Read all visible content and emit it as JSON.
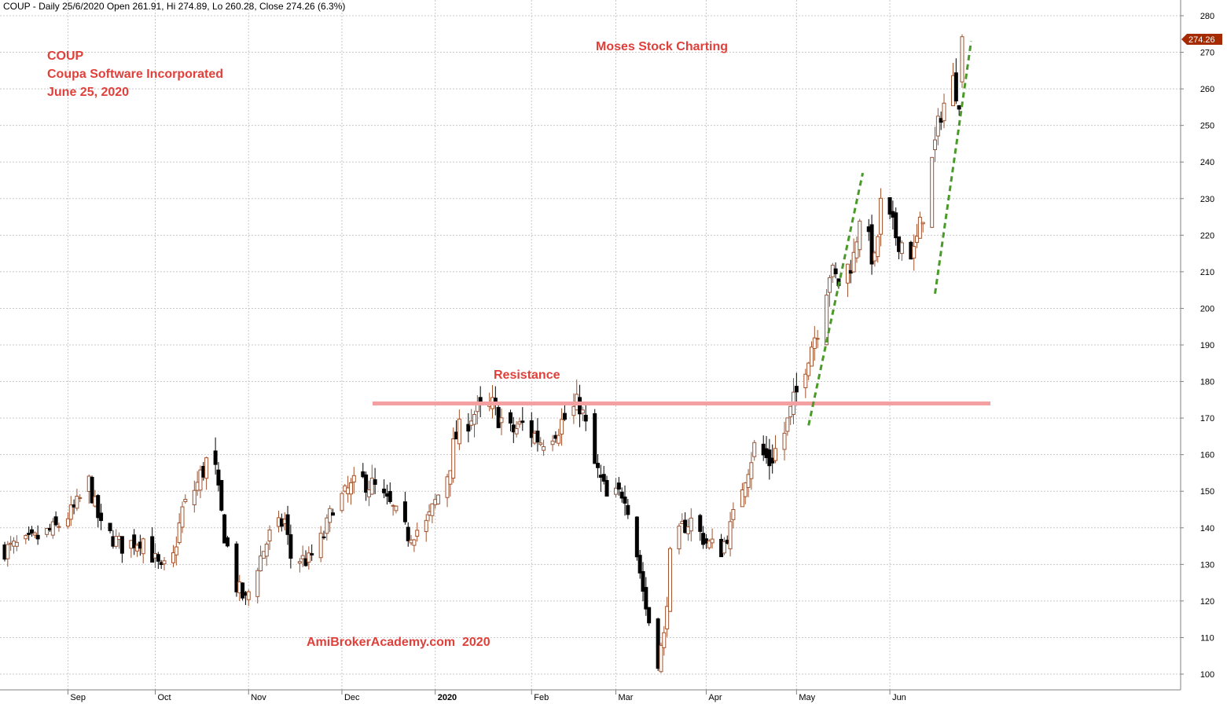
{
  "header": {
    "info_line": "COUP - Daily 25/6/2020 Open 261.91, Hi 274.89, Lo 260.28, Close 274.26 (6.3%)"
  },
  "annotations": {
    "ticker": "COUP",
    "company": "Coupa Software Incorporated",
    "date": "June 25, 2020",
    "brand_top": "Moses Stock Charting",
    "resistance_label": "Resistance",
    "watermark": "AmiBrokerAcademy.com  2020"
  },
  "price_tag": {
    "value": "274.26",
    "color": "#a52a00"
  },
  "colors": {
    "up_candle": "#a0522d",
    "down_candle": "#000000",
    "resistance_line": "#f4a0a0",
    "trend_line": "#4a9a2a",
    "grid": "#c8c8c8",
    "annotation_text": "#e0403a"
  },
  "chart_data": {
    "type": "candlestick",
    "title": "",
    "ylim": [
      97,
      283
    ],
    "y_ticks": [
      100,
      110,
      120,
      130,
      140,
      150,
      160,
      170,
      180,
      190,
      200,
      210,
      220,
      230,
      240,
      250,
      260,
      270,
      280
    ],
    "x_range": [
      "2019-08-12",
      "2020-06-30"
    ],
    "x_ticks": [
      {
        "label": "Sep",
        "date": "2019-09-02",
        "bold": false
      },
      {
        "label": "Oct",
        "date": "2019-10-01",
        "bold": false
      },
      {
        "label": "Nov",
        "date": "2019-11-01",
        "bold": false
      },
      {
        "label": "Dec",
        "date": "2019-12-02",
        "bold": false
      },
      {
        "label": "2020",
        "date": "2020-01-02",
        "bold": true
      },
      {
        "label": "Feb",
        "date": "2020-02-03",
        "bold": false
      },
      {
        "label": "Mar",
        "date": "2020-03-02",
        "bold": false
      },
      {
        "label": "Apr",
        "date": "2020-04-01",
        "bold": false
      },
      {
        "label": "May",
        "date": "2020-05-01",
        "bold": false
      },
      {
        "label": "Jun",
        "date": "2020-06-01",
        "bold": false
      }
    ],
    "grid": true,
    "last": {
      "date": "2020-06-25",
      "open": 261.91,
      "high": 274.89,
      "low": 260.28,
      "close": 274.26
    },
    "closes": [
      {
        "date": "2019-08-12",
        "close": 134
      },
      {
        "date": "2019-08-20",
        "close": 136
      },
      {
        "date": "2019-08-29",
        "close": 140
      },
      {
        "date": "2019-09-04",
        "close": 145
      },
      {
        "date": "2019-09-09",
        "close": 152
      },
      {
        "date": "2019-09-13",
        "close": 140
      },
      {
        "date": "2019-09-20",
        "close": 135
      },
      {
        "date": "2019-09-27",
        "close": 137
      },
      {
        "date": "2019-10-03",
        "close": 128
      },
      {
        "date": "2019-10-07",
        "close": 132
      },
      {
        "date": "2019-10-10",
        "close": 145
      },
      {
        "date": "2019-10-15",
        "close": 152
      },
      {
        "date": "2019-10-18",
        "close": 158
      },
      {
        "date": "2019-10-21",
        "close": 155
      },
      {
        "date": "2019-10-24",
        "close": 138
      },
      {
        "date": "2019-10-28",
        "close": 124
      },
      {
        "date": "2019-10-31",
        "close": 120
      },
      {
        "date": "2019-11-04",
        "close": 130
      },
      {
        "date": "2019-11-08",
        "close": 138
      },
      {
        "date": "2019-11-13",
        "close": 142
      },
      {
        "date": "2019-11-15",
        "close": 132
      },
      {
        "date": "2019-11-21",
        "close": 131
      },
      {
        "date": "2019-11-26",
        "close": 138
      },
      {
        "date": "2019-11-29",
        "close": 146
      },
      {
        "date": "2019-12-04",
        "close": 150
      },
      {
        "date": "2019-12-10",
        "close": 153
      },
      {
        "date": "2019-12-16",
        "close": 148
      },
      {
        "date": "2019-12-19",
        "close": 145
      },
      {
        "date": "2019-12-24",
        "close": 138
      },
      {
        "date": "2019-12-30",
        "close": 141
      },
      {
        "date": "2020-01-02",
        "close": 147
      },
      {
        "date": "2020-01-06",
        "close": 155
      },
      {
        "date": "2020-01-09",
        "close": 165
      },
      {
        "date": "2020-01-14",
        "close": 171
      },
      {
        "date": "2020-01-21",
        "close": 173
      },
      {
        "date": "2020-01-27",
        "close": 166
      },
      {
        "date": "2020-01-31",
        "close": 168
      },
      {
        "date": "2020-02-06",
        "close": 164
      },
      {
        "date": "2020-02-12",
        "close": 168
      },
      {
        "date": "2020-02-19",
        "close": 174
      },
      {
        "date": "2020-02-24",
        "close": 157
      },
      {
        "date": "2020-02-28",
        "close": 148
      },
      {
        "date": "2020-03-05",
        "close": 150
      },
      {
        "date": "2020-03-09",
        "close": 133
      },
      {
        "date": "2020-03-12",
        "close": 118
      },
      {
        "date": "2020-03-16",
        "close": 104
      },
      {
        "date": "2020-03-18",
        "close": 110
      },
      {
        "date": "2020-03-20",
        "close": 132
      },
      {
        "date": "2020-03-24",
        "close": 140
      },
      {
        "date": "2020-03-27",
        "close": 142
      },
      {
        "date": "2020-04-01",
        "close": 136
      },
      {
        "date": "2020-04-06",
        "close": 134
      },
      {
        "date": "2020-04-09",
        "close": 140
      },
      {
        "date": "2020-04-14",
        "close": 155
      },
      {
        "date": "2020-04-17",
        "close": 162
      },
      {
        "date": "2020-04-22",
        "close": 158
      },
      {
        "date": "2020-04-27",
        "close": 166
      },
      {
        "date": "2020-04-30",
        "close": 174
      },
      {
        "date": "2020-05-05",
        "close": 188
      },
      {
        "date": "2020-05-08",
        "close": 195
      },
      {
        "date": "2020-05-12",
        "close": 210
      },
      {
        "date": "2020-05-15",
        "close": 207
      },
      {
        "date": "2020-05-20",
        "close": 214
      },
      {
        "date": "2020-05-22",
        "close": 226
      },
      {
        "date": "2020-05-27",
        "close": 212
      },
      {
        "date": "2020-05-29",
        "close": 228
      },
      {
        "date": "2020-06-03",
        "close": 220
      },
      {
        "date": "2020-06-05",
        "close": 218
      },
      {
        "date": "2020-06-09",
        "close": 215
      },
      {
        "date": "2020-06-11",
        "close": 222
      },
      {
        "date": "2020-06-15",
        "close": 240
      },
      {
        "date": "2020-06-18",
        "close": 254
      },
      {
        "date": "2020-06-22",
        "close": 262
      },
      {
        "date": "2020-06-24",
        "close": 258
      },
      {
        "date": "2020-06-25",
        "close": 274.26
      }
    ],
    "lines": [
      {
        "name": "Resistance",
        "kind": "horizontal",
        "value": 174,
        "from": "2019-12-01",
        "to": "2020-06-30"
      },
      {
        "name": "",
        "kind": "trend",
        "points": [
          {
            "date": "2020-05-05",
            "value": 168
          },
          {
            "date": "2020-05-23",
            "value": 237
          }
        ]
      },
      {
        "name": "",
        "kind": "trend",
        "points": [
          {
            "date": "2020-06-16",
            "value": 204
          },
          {
            "date": "2020-06-28",
            "value": 273
          }
        ]
      }
    ]
  }
}
